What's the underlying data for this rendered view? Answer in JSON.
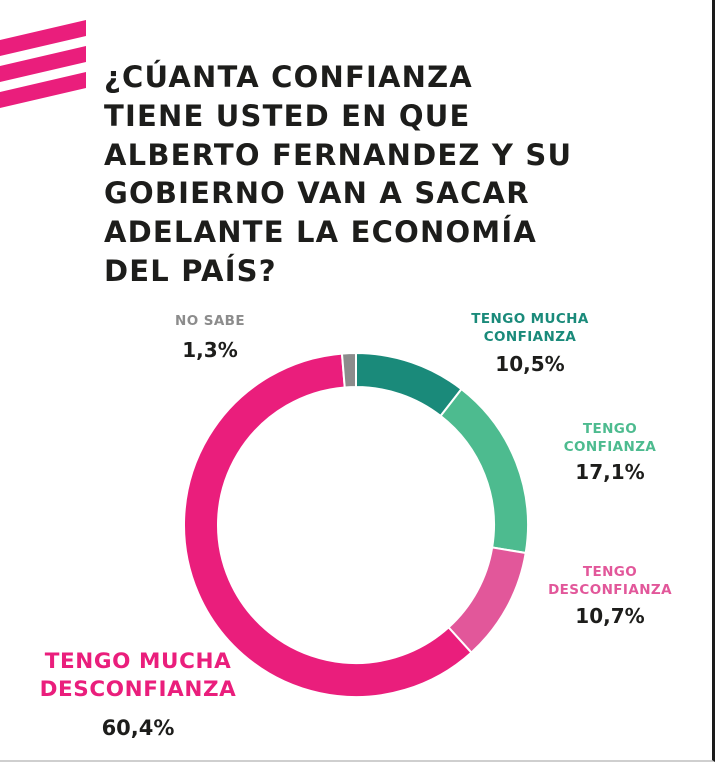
{
  "title": "¿CÚANTA CONFIANZA\nTIENE USTED EN QUE\nALBERTO FERNANDEZ Y SU\nGOBIERNO VAN A SACAR\nADELANTE LA ECONOMÍA\nDEL PAÍS?",
  "colors": {
    "brand_pink": "#ea1e7c",
    "dark_teal": "#1a8a7a",
    "light_teal": "#4dbb8f",
    "light_pink": "#e2579a",
    "gray": "#8c8c8c"
  },
  "chart_data": {
    "type": "pie",
    "style": "donut",
    "slices": [
      {
        "label": "TENGO MUCHA\nCONFIANZA",
        "value": 10.5,
        "display": "10,5%",
        "color": "#1a8a7a"
      },
      {
        "label": "TENGO\nCONFIANZA",
        "value": 17.1,
        "display": "17,1%",
        "color": "#4dbb8f"
      },
      {
        "label": "TENGO\nDESCONFIANZA",
        "value": 10.7,
        "display": "10,7%",
        "color": "#e2579a"
      },
      {
        "label": "TENGO MUCHA\nDESCONFIANZA",
        "value": 60.4,
        "display": "60,4%",
        "color": "#ea1e7c"
      },
      {
        "label": "NO SABE",
        "value": 1.3,
        "display": "1,3%",
        "color": "#8c8c8c"
      }
    ]
  }
}
